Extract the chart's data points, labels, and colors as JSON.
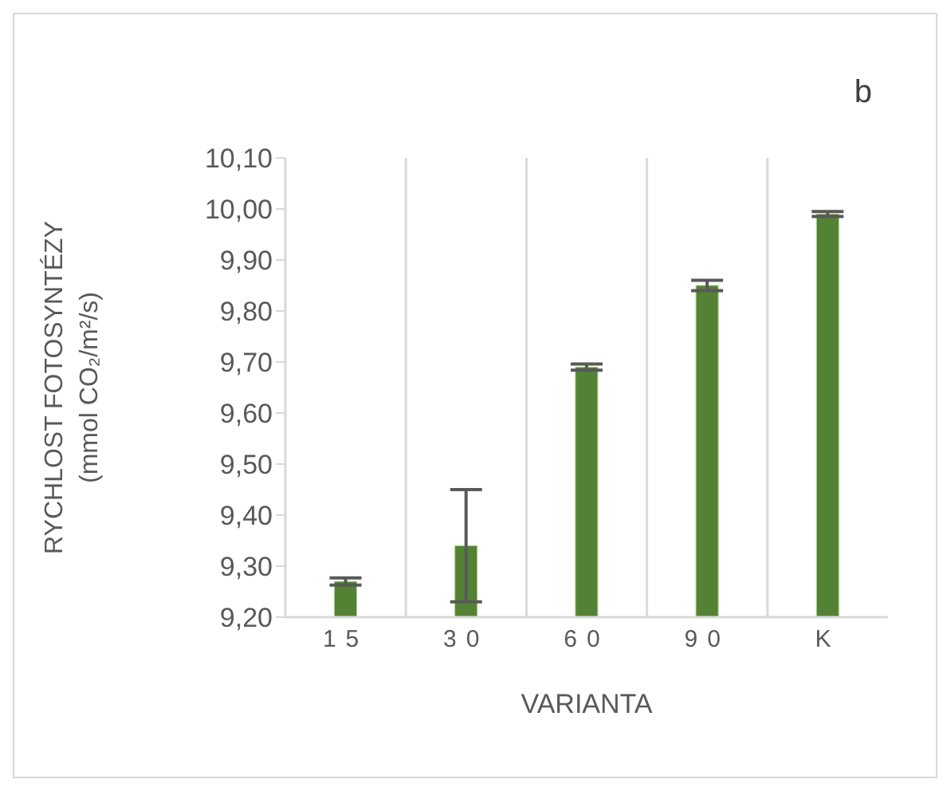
{
  "chart_data": {
    "type": "bar",
    "ylabel": "RYCHLOST FOTOSYNTÉZY\n(mmol CO₂/m²/s)",
    "xlabel": "VARIANTA",
    "annotations": [
      "b"
    ],
    "categories": [
      "15",
      "30",
      "60",
      "90",
      "K"
    ],
    "values": [
      9.27,
      9.34,
      9.69,
      9.85,
      9.99
    ],
    "errors": [
      0.007,
      0.11,
      0.006,
      0.01,
      0.005
    ],
    "color": "#548235",
    "ylim": [
      9.2,
      10.1
    ],
    "yticks": [
      {
        "value": 9.2,
        "label": "9,20"
      },
      {
        "value": 9.3,
        "label": "9,30"
      },
      {
        "value": 9.4,
        "label": "9,40"
      },
      {
        "value": 9.5,
        "label": "9,50"
      },
      {
        "value": 9.6,
        "label": "9,60"
      },
      {
        "value": 9.7,
        "label": "9,70"
      },
      {
        "value": 9.8,
        "label": "9,80"
      },
      {
        "value": 9.9,
        "label": "9,90"
      },
      {
        "value": 10.0,
        "label": "10,00"
      },
      {
        "value": 10.1,
        "label": "10,10"
      }
    ],
    "grid": "x"
  }
}
